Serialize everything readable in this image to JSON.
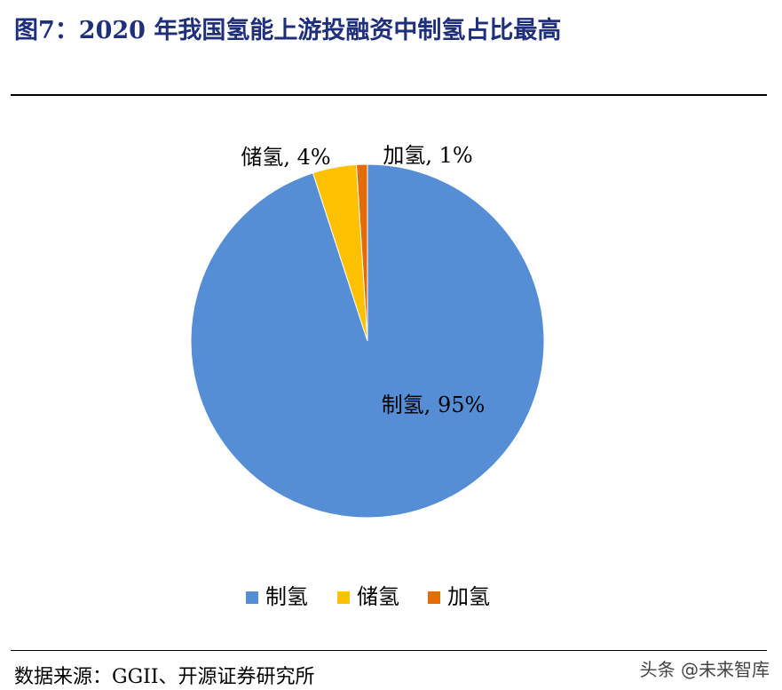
{
  "figure": {
    "title": "图7：2020 年我国氢能上游投融资中制氢占比最高",
    "source": "数据来源：GGII、开源证券研究所",
    "watermark": "头条 @未来智库"
  },
  "chart_data": {
    "type": "pie",
    "start_angle_deg": 0,
    "direction": "clockwise",
    "legend_position": "bottom",
    "slices": [
      {
        "label": "制氢",
        "value": 95,
        "display": "制氢, 95%",
        "color": "#558ed5"
      },
      {
        "label": "储氢",
        "value": 4,
        "display": "储氢, 4%",
        "color": "#ffc000"
      },
      {
        "label": "加氢",
        "value": 1,
        "display": "加氢, 1%",
        "color": "#e36c09"
      }
    ]
  }
}
